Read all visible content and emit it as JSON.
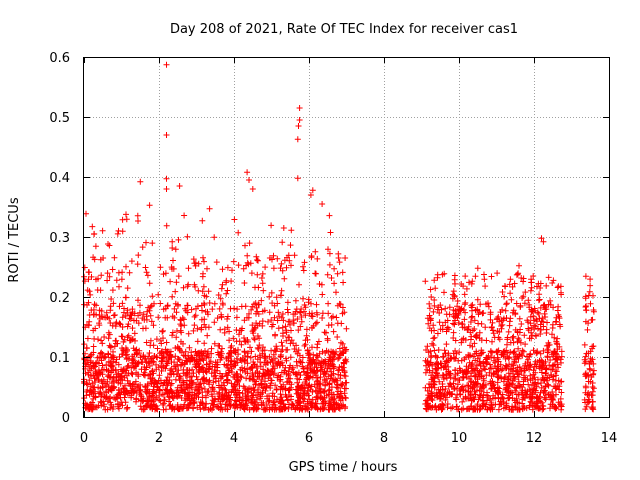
{
  "chart_data": {
    "type": "scatter",
    "title": "Day 208 of 2021, Rate Of TEC Index for receiver cas1",
    "xlabel": "GPS time / hours",
    "ylabel": "ROTI / TECUs",
    "xlim": [
      0,
      14
    ],
    "ylim": [
      0,
      0.6
    ],
    "xticks": [
      "0",
      "2",
      "4",
      "6",
      "8",
      "10",
      "12",
      "14"
    ],
    "yticks": [
      "0",
      "0.1",
      "0.2",
      "0.3",
      "0.4",
      "0.5",
      "0.6"
    ],
    "grid": true,
    "marker": "+",
    "series": [
      {
        "name": "ROTI",
        "color": "#ff0000",
        "segments": [
          {
            "x0": 0.0,
            "x1": 7.0
          },
          {
            "x0": 9.1,
            "x1": 12.75
          },
          {
            "x0": 13.35,
            "x1": 13.6
          }
        ],
        "highlights": [
          {
            "x": 2.2,
            "y": 0.587
          },
          {
            "x": 2.2,
            "y": 0.47
          },
          {
            "x": 2.2,
            "y": 0.397
          },
          {
            "x": 2.2,
            "y": 0.38
          },
          {
            "x": 1.5,
            "y": 0.392
          },
          {
            "x": 2.55,
            "y": 0.385
          },
          {
            "x": 4.35,
            "y": 0.408
          },
          {
            "x": 4.4,
            "y": 0.395
          },
          {
            "x": 4.5,
            "y": 0.38
          },
          {
            "x": 5.75,
            "y": 0.515
          },
          {
            "x": 5.75,
            "y": 0.495
          },
          {
            "x": 5.72,
            "y": 0.485
          },
          {
            "x": 5.7,
            "y": 0.463
          },
          {
            "x": 5.7,
            "y": 0.398
          },
          {
            "x": 6.1,
            "y": 0.378
          },
          {
            "x": 6.05,
            "y": 0.37
          },
          {
            "x": 6.35,
            "y": 0.355
          },
          {
            "x": 1.75,
            "y": 0.353
          },
          {
            "x": 3.35,
            "y": 0.347
          },
          {
            "x": 12.2,
            "y": 0.298
          },
          {
            "x": 12.25,
            "y": 0.292
          },
          {
            "x": 11.6,
            "y": 0.252
          },
          {
            "x": 10.5,
            "y": 0.248
          },
          {
            "x": 12.65,
            "y": 0.218
          }
        ]
      }
    ]
  }
}
